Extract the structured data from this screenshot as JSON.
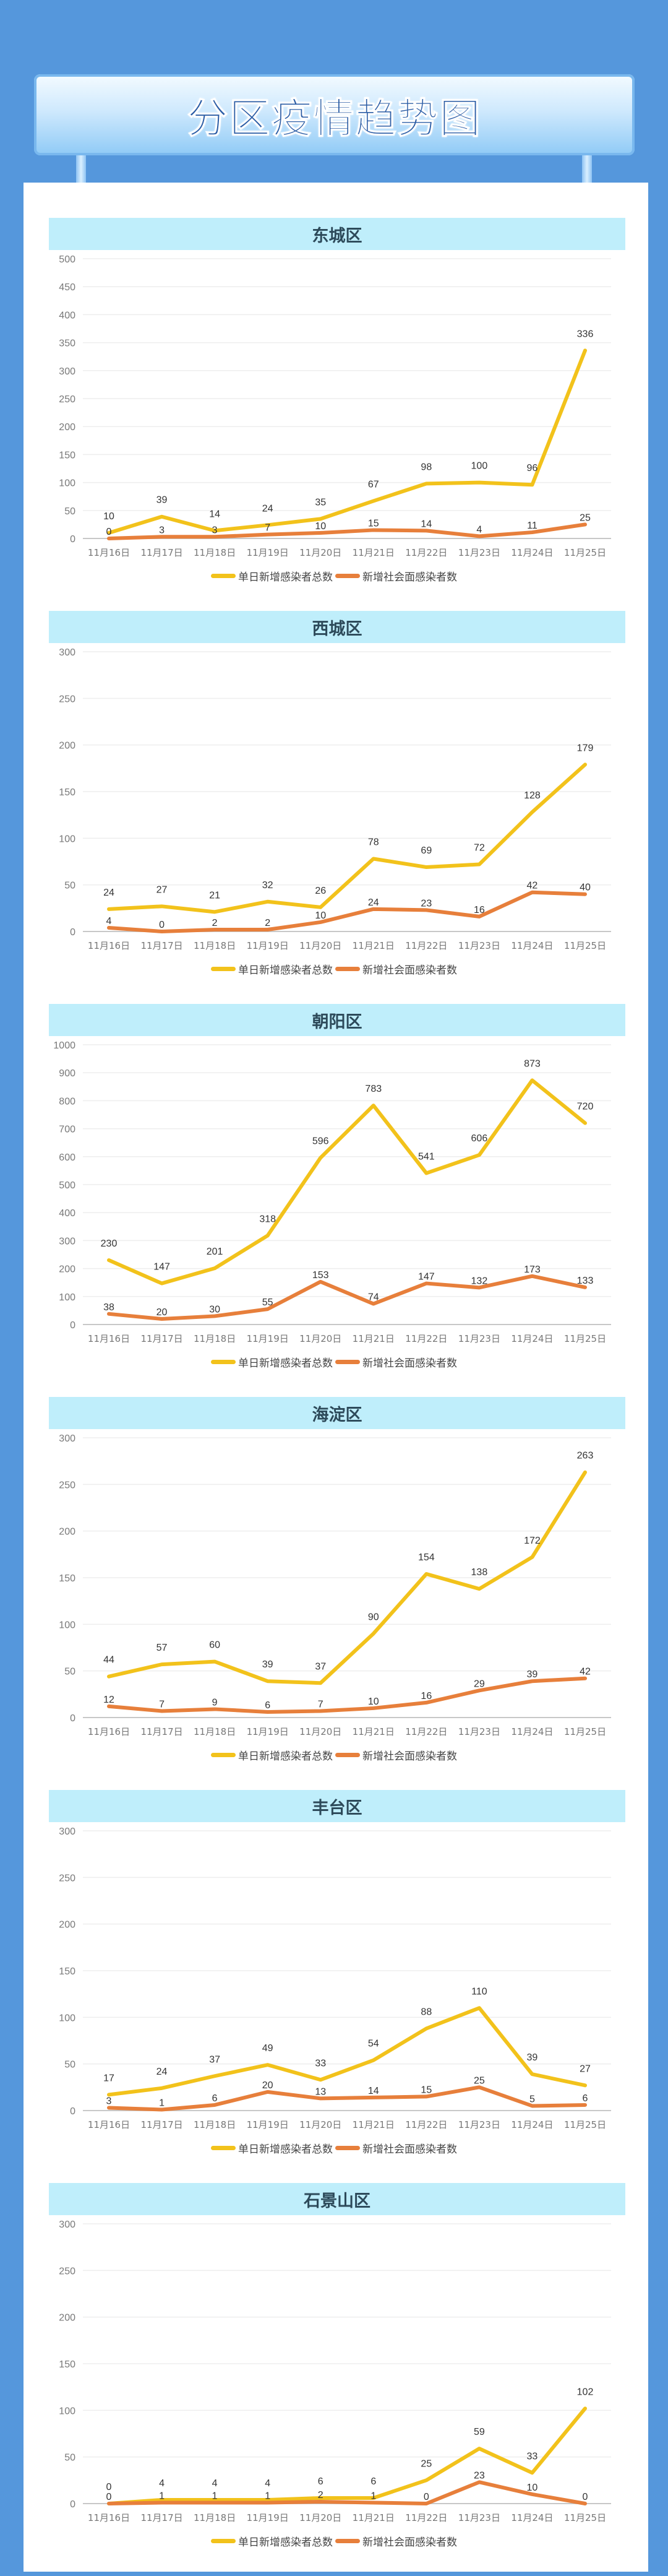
{
  "page_title": "分区疫情趋势图",
  "colors": {
    "background": "#5597dc",
    "total": "#f2c21b",
    "community": "#e77f3b",
    "section_header": "#bfeefb"
  },
  "chart_data": [
    {
      "type": "line",
      "title": "东城区",
      "categories": [
        "11月16日",
        "11月17日",
        "11月18日",
        "11月19日",
        "11月20日",
        "11月21日",
        "11月22日",
        "11月23日",
        "11月24日",
        "11月25日"
      ],
      "ylim": [
        0,
        500
      ],
      "ystep": 50,
      "grid": true,
      "legend": "bottom",
      "series": [
        {
          "name": "单日新增感染者总数",
          "values": [
            10,
            39,
            14,
            24,
            35,
            67,
            98,
            100,
            96,
            336
          ]
        },
        {
          "name": "新增社会面感染者数",
          "values": [
            0,
            3,
            3,
            7,
            10,
            15,
            14,
            4,
            11,
            25
          ]
        }
      ]
    },
    {
      "type": "line",
      "title": "西城区",
      "categories": [
        "11月16日",
        "11月17日",
        "11月18日",
        "11月19日",
        "11月20日",
        "11月21日",
        "11月22日",
        "11月23日",
        "11月24日",
        "11月25日"
      ],
      "ylim": [
        0,
        300
      ],
      "ystep": 50,
      "grid": true,
      "legend": "bottom",
      "series": [
        {
          "name": "单日新增感染者总数",
          "values": [
            24,
            27,
            21,
            32,
            26,
            78,
            69,
            72,
            128,
            179
          ]
        },
        {
          "name": "新增社会面感染者数",
          "values": [
            4,
            0,
            2,
            2,
            10,
            24,
            23,
            16,
            42,
            40
          ]
        }
      ]
    },
    {
      "type": "line",
      "title": "朝阳区",
      "categories": [
        "11月16日",
        "11月17日",
        "11月18日",
        "11月19日",
        "11月20日",
        "11月21日",
        "11月22日",
        "11月23日",
        "11月24日",
        "11月25日"
      ],
      "ylim": [
        0,
        1000
      ],
      "ystep": 100,
      "grid": true,
      "legend": "bottom",
      "series": [
        {
          "name": "单日新增感染者总数",
          "values": [
            230,
            147,
            201,
            318,
            596,
            783,
            541,
            606,
            873,
            720
          ]
        },
        {
          "name": "新增社会面感染者数",
          "values": [
            38,
            20,
            30,
            55,
            153,
            74,
            147,
            132,
            173,
            133
          ]
        }
      ]
    },
    {
      "type": "line",
      "title": "海淀区",
      "categories": [
        "11月16日",
        "11月17日",
        "11月18日",
        "11月19日",
        "11月20日",
        "11月21日",
        "11月22日",
        "11月23日",
        "11月24日",
        "11月25日"
      ],
      "ylim": [
        0,
        300
      ],
      "ystep": 50,
      "grid": true,
      "legend": "bottom",
      "series": [
        {
          "name": "单日新增感染者总数",
          "values": [
            44,
            57,
            60,
            39,
            37,
            90,
            154,
            138,
            172,
            263
          ]
        },
        {
          "name": "新增社会面感染者数",
          "values": [
            12,
            7,
            9,
            6,
            7,
            10,
            16,
            29,
            39,
            42
          ]
        }
      ]
    },
    {
      "type": "line",
      "title": "丰台区",
      "categories": [
        "11月16日",
        "11月17日",
        "11月18日",
        "11月19日",
        "11月20日",
        "11月21日",
        "11月22日",
        "11月23日",
        "11月24日",
        "11月25日"
      ],
      "ylim": [
        0,
        300
      ],
      "ystep": 50,
      "grid": true,
      "legend": "bottom",
      "series": [
        {
          "name": "单日新增感染者总数",
          "values": [
            17,
            24,
            37,
            49,
            33,
            54,
            88,
            110,
            39,
            27
          ]
        },
        {
          "name": "新增社会面感染者数",
          "values": [
            3,
            1,
            6,
            20,
            13,
            14,
            15,
            25,
            5,
            6
          ]
        }
      ]
    },
    {
      "type": "line",
      "title": "石景山区",
      "categories": [
        "11月16日",
        "11月17日",
        "11月18日",
        "11月19日",
        "11月20日",
        "11月21日",
        "11月22日",
        "11月23日",
        "11月24日",
        "11月25日"
      ],
      "ylim": [
        0,
        300
      ],
      "ystep": 50,
      "grid": true,
      "legend": "bottom",
      "series": [
        {
          "name": "单日新增感染者总数",
          "values": [
            0,
            4,
            4,
            4,
            6,
            6,
            25,
            59,
            33,
            102
          ]
        },
        {
          "name": "新增社会面感染者数",
          "values": [
            0,
            1,
            1,
            1,
            2,
            1,
            0,
            23,
            10,
            0
          ]
        }
      ]
    }
  ]
}
